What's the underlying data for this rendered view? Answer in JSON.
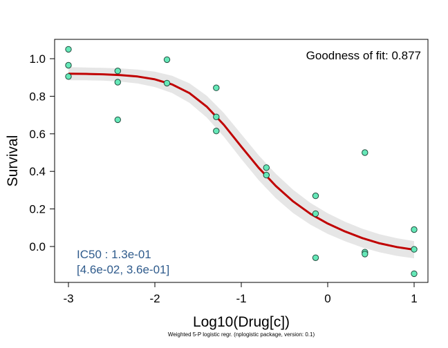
{
  "chart_data": {
    "type": "scatter",
    "xlabel": "Log10(Drug[c])",
    "ylabel": "Survival",
    "xlim": [
      -3.1,
      1.1
    ],
    "ylim": [
      -0.19,
      1.1
    ],
    "xticks": [
      -3,
      -2,
      -1,
      0,
      1
    ],
    "yticks": [
      0.0,
      0.2,
      0.4,
      0.6,
      0.8,
      1.0
    ],
    "xtick_labels": [
      "-3",
      "-2",
      "-1",
      "0",
      "1"
    ],
    "ytick_labels": [
      "0.0",
      "0.2",
      "0.4",
      "0.6",
      "0.8",
      "1.0"
    ],
    "grid": false,
    "points": {
      "x": [
        -3,
        -3,
        -3,
        -2.43,
        -2.43,
        -2.43,
        -1.86,
        -1.86,
        -1.29,
        -1.29,
        -1.29,
        -0.71,
        -0.71,
        -0.14,
        -0.14,
        -0.14,
        0.43,
        0.43,
        0.43,
        1,
        1,
        1
      ],
      "y": [
        1.05,
        0.965,
        0.905,
        0.935,
        0.875,
        0.675,
        0.995,
        0.87,
        0.845,
        0.69,
        0.615,
        0.42,
        0.38,
        0.27,
        0.175,
        -0.06,
        0.5,
        -0.03,
        -0.04,
        0.09,
        -0.015,
        -0.145
      ],
      "fill": "#66e8b8",
      "stroke": "#1f4a3c"
    },
    "fit": {
      "x": [
        -3,
        -2.8,
        -2.6,
        -2.4,
        -2.2,
        -2.0,
        -1.8,
        -1.6,
        -1.4,
        -1.2,
        -1.0,
        -0.8,
        -0.6,
        -0.4,
        -0.2,
        0.0,
        0.2,
        0.4,
        0.6,
        0.8,
        1.0
      ],
      "y": [
        0.92,
        0.919,
        0.917,
        0.913,
        0.905,
        0.89,
        0.863,
        0.817,
        0.745,
        0.647,
        0.532,
        0.42,
        0.322,
        0.24,
        0.174,
        0.122,
        0.08,
        0.045,
        0.017,
        -0.003,
        -0.017
      ],
      "color": "#c00000"
    },
    "confidence_band": {
      "halfwidth": [
        0.035,
        0.034,
        0.034,
        0.035,
        0.037,
        0.041,
        0.046,
        0.052,
        0.058,
        0.063,
        0.066,
        0.066,
        0.065,
        0.062,
        0.058,
        0.055,
        0.052,
        0.05,
        0.048,
        0.047,
        0.046
      ],
      "color": "#e6e6e6"
    },
    "annotations": {
      "goodness_of_fit": "Goodness of fit: 0.877",
      "ic50_line1": "IC50 : 1.3e-01",
      "ic50_line2": "[4.6e-02, 3.6e-01]",
      "ic50_color": "#2f5b8c"
    },
    "footnote": "Weighted 5-P logistic regr. (nplogistic package, version: 0.1)"
  }
}
